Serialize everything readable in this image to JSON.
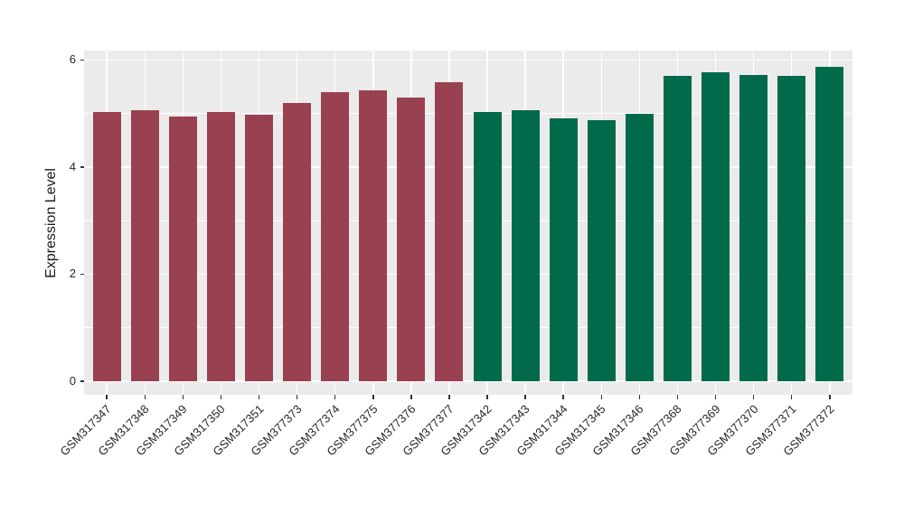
{
  "chart_data": {
    "type": "bar",
    "title": "",
    "xlabel": "",
    "ylabel": "Expression Level",
    "ylim": [
      0,
      6.2
    ],
    "yticks": [
      0,
      2,
      4,
      6
    ],
    "ytick_labels": [
      "0",
      "2",
      "4",
      "6"
    ],
    "yticks_minor": [
      1,
      3,
      5
    ],
    "legend_position": "none",
    "grid": {
      "horizontal_major": true,
      "horizontal_minor": true,
      "vertical_major": true,
      "grid_color": "#FFFFFF",
      "panel_background": "#EBEBEB"
    },
    "categories": [
      "GSM317347",
      "GSM317348",
      "GSM317349",
      "GSM317350",
      "GSM317351",
      "GSM377373",
      "GSM377374",
      "GSM377375",
      "GSM377376",
      "GSM377377",
      "GSM317342",
      "GSM317343",
      "GSM317344",
      "GSM317345",
      "GSM317346",
      "GSM377368",
      "GSM377369",
      "GSM377370",
      "GSM377371",
      "GSM377372"
    ],
    "values": [
      5.02,
      5.07,
      4.94,
      5.02,
      4.98,
      5.19,
      5.4,
      5.44,
      5.3,
      5.59,
      5.02,
      5.07,
      4.91,
      4.88,
      5.0,
      5.7,
      5.77,
      5.72,
      5.7,
      5.88
    ],
    "bar_groups": [
      "group1",
      "group1",
      "group1",
      "group1",
      "group1",
      "group1",
      "group1",
      "group1",
      "group1",
      "group1",
      "group2",
      "group2",
      "group2",
      "group2",
      "group2",
      "group2",
      "group2",
      "group2",
      "group2",
      "group2"
    ],
    "group_colors": {
      "group1": "#9A4151",
      "group2": "#016A4A"
    },
    "axis_text_color": "#262626",
    "tick_mark_color": "#333333"
  }
}
